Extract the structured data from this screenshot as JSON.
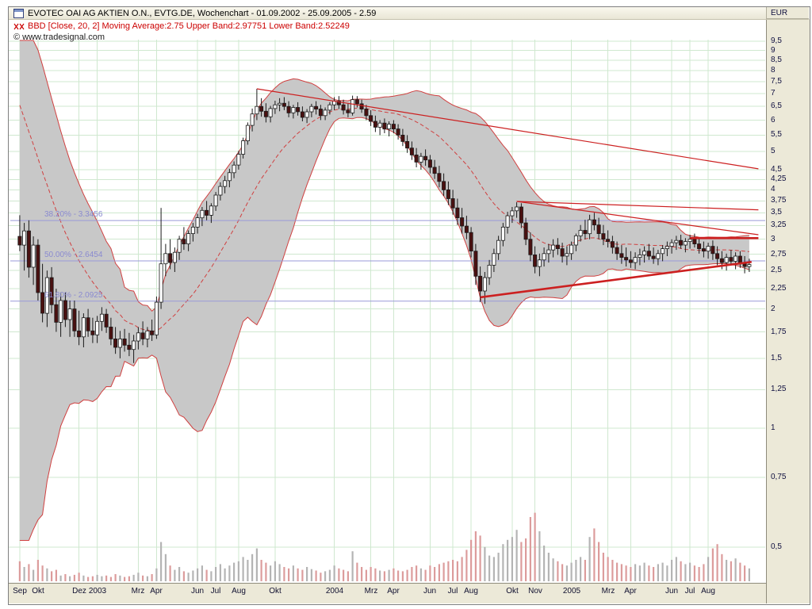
{
  "window": {
    "title": "EVOTEC OAI AG AKTIEN O.N., EVTG.DE, Wochenchart - 01.09.2002 - 25.09.2005 - 2.59",
    "indicator_line": "BBD [Close, 20, 2] Moving Average:2.75 Upper Band:2.97751 Lower Band:2.52249",
    "copyright": "© www.tradesignal.com",
    "currency_label": "EUR"
  },
  "colors": {
    "grid": "#cfe8cf",
    "band_fill": "#c8c8c8",
    "band_line": "#d04040",
    "ma_line": "#d04040",
    "fib_line": "#9a9ad8",
    "fib_label": "#8a8ad0",
    "candle_up": "#ffffff",
    "candle_down": "#4a1010",
    "candle_stroke": "#1a1a1a",
    "volume_up": "#b4b4b4",
    "volume_down": "#dc9c9c",
    "trendline": "#cc2020",
    "red_text": "#cc0000",
    "panel_bg": "#ece9d8"
  },
  "chart_data": {
    "type": "candlestick",
    "instrument": "EVOTEC OAI AG AKTIEN O.N.",
    "symbol": "EVTG.DE",
    "timeframe": "Wochenchart",
    "date_range": "01.09.2002 - 25.09.2005",
    "last_price": 2.59,
    "scale": "log",
    "ylim": [
      0.5,
      9.5
    ],
    "bollinger": {
      "period": 20,
      "mult": 2,
      "moving_average": 2.75,
      "upper_band": 2.97751,
      "lower_band": 2.52249
    },
    "y_ticks": [
      {
        "value": 9.5,
        "label": "9,5"
      },
      {
        "value": 9,
        "label": "9"
      },
      {
        "value": 8.5,
        "label": "8,5"
      },
      {
        "value": 8,
        "label": "8"
      },
      {
        "value": 7.5,
        "label": "7,5"
      },
      {
        "value": 7,
        "label": "7"
      },
      {
        "value": 6.5,
        "label": "6,5"
      },
      {
        "value": 6,
        "label": "6"
      },
      {
        "value": 5.5,
        "label": "5,5"
      },
      {
        "value": 5,
        "label": "5"
      },
      {
        "value": 4.5,
        "label": "4,5"
      },
      {
        "value": 4.25,
        "label": "4,25"
      },
      {
        "value": 4,
        "label": "4"
      },
      {
        "value": 3.75,
        "label": "3,75"
      },
      {
        "value": 3.5,
        "label": "3,5"
      },
      {
        "value": 3.25,
        "label": "3,25"
      },
      {
        "value": 3,
        "label": "3"
      },
      {
        "value": 2.75,
        "label": "2,75"
      },
      {
        "value": 2.5,
        "label": "2,5"
      },
      {
        "value": 2.25,
        "label": "2,25"
      },
      {
        "value": 2,
        "label": "2"
      },
      {
        "value": 1.75,
        "label": "1,75"
      },
      {
        "value": 1.5,
        "label": "1,5"
      },
      {
        "value": 1.25,
        "label": "1,25"
      },
      {
        "value": 1,
        "label": "1"
      },
      {
        "value": 0.75,
        "label": "0,75"
      },
      {
        "value": 0.5,
        "label": "0,5"
      }
    ],
    "x_labels": [
      {
        "label": "Sep",
        "week": 0
      },
      {
        "label": "Okt",
        "week": 4
      },
      {
        "label": "Dez",
        "week": 13
      },
      {
        "label": "2003",
        "week": 17
      },
      {
        "label": "Mrz",
        "week": 26
      },
      {
        "label": "Apr",
        "week": 30
      },
      {
        "label": "Jun",
        "week": 39
      },
      {
        "label": "Jul",
        "week": 43
      },
      {
        "label": "Aug",
        "week": 48
      },
      {
        "label": "Okt",
        "week": 56
      },
      {
        "label": "2004",
        "week": 69
      },
      {
        "label": "Mrz",
        "week": 77
      },
      {
        "label": "Apr",
        "week": 82
      },
      {
        "label": "Jun",
        "week": 90
      },
      {
        "label": "Jul",
        "week": 95
      },
      {
        "label": "Aug",
        "week": 99
      },
      {
        "label": "Okt",
        "week": 108
      },
      {
        "label": "Nov",
        "week": 113
      },
      {
        "label": "2005",
        "week": 121
      },
      {
        "label": "Mrz",
        "week": 129
      },
      {
        "label": "Apr",
        "week": 134
      },
      {
        "label": "Jun",
        "week": 143
      },
      {
        "label": "Jul",
        "week": 147
      },
      {
        "label": "Aug",
        "week": 151
      }
    ],
    "fib_levels": [
      {
        "label": "38.20% - 3.3456",
        "price": 3.3456
      },
      {
        "label": "50.00% - 2.6454",
        "price": 2.6454
      },
      {
        "label": "61.80% - 2.0925",
        "price": 2.0925
      }
    ],
    "trendlines": [
      {
        "w1": 52,
        "p1": 7.2,
        "w2": 162,
        "p2": 4.52,
        "width": 1.2
      },
      {
        "w1": 109,
        "p1": 3.74,
        "w2": 162,
        "p2": 3.56,
        "width": 1.2
      },
      {
        "w1": 109,
        "p1": 3.74,
        "w2": 162,
        "p2": 3.08,
        "width": 1.2
      },
      {
        "w1": 101,
        "p1": 2.14,
        "w2": 160.5,
        "p2": 2.63,
        "width": 2.6
      },
      {
        "w1": 147,
        "p1": 3.02,
        "w2": 162,
        "p2": 3.02,
        "width": 2.6
      }
    ],
    "prehistory_closes": [
      13.5,
      12.6,
      11.8,
      11.0,
      10.2,
      9.4,
      8.7,
      8.0,
      7.3,
      6.6,
      6.0,
      5.4,
      4.9,
      4.5,
      4.15,
      3.85,
      3.6,
      3.45,
      3.35,
      3.2
    ],
    "candles": [
      [
        3.05,
        3.45,
        2.8,
        2.9
      ],
      [
        2.9,
        3.3,
        2.5,
        3.15
      ],
      [
        3.15,
        3.35,
        2.4,
        2.55
      ],
      [
        2.55,
        3.05,
        2.3,
        2.9
      ],
      [
        2.9,
        3.0,
        2.1,
        2.2
      ],
      [
        2.2,
        2.6,
        1.85,
        1.95
      ],
      [
        1.95,
        2.5,
        1.8,
        2.4
      ],
      [
        2.4,
        2.55,
        1.95,
        2.05
      ],
      [
        2.05,
        2.25,
        1.75,
        1.85
      ],
      [
        1.85,
        2.2,
        1.7,
        2.1
      ],
      [
        2.1,
        2.2,
        1.8,
        1.88
      ],
      [
        1.88,
        2.1,
        1.7,
        2.0
      ],
      [
        2.0,
        2.1,
        1.7,
        1.76
      ],
      [
        1.76,
        1.98,
        1.62,
        1.7
      ],
      [
        1.7,
        1.95,
        1.6,
        1.9
      ],
      [
        1.9,
        2.0,
        1.7,
        1.76
      ],
      [
        1.76,
        1.9,
        1.64,
        1.72
      ],
      [
        1.72,
        1.92,
        1.64,
        1.86
      ],
      [
        1.86,
        2.02,
        1.76,
        1.94
      ],
      [
        1.94,
        2.0,
        1.74,
        1.8
      ],
      [
        1.8,
        1.9,
        1.62,
        1.68
      ],
      [
        1.68,
        1.8,
        1.54,
        1.6
      ],
      [
        1.6,
        1.76,
        1.5,
        1.68
      ],
      [
        1.68,
        1.78,
        1.56,
        1.62
      ],
      [
        1.62,
        1.74,
        1.52,
        1.58
      ],
      [
        1.58,
        1.72,
        1.46,
        1.66
      ],
      [
        1.66,
        1.8,
        1.58,
        1.74
      ],
      [
        1.74,
        1.86,
        1.62,
        1.68
      ],
      [
        1.68,
        1.8,
        1.6,
        1.76
      ],
      [
        1.76,
        1.88,
        1.66,
        1.72
      ],
      [
        1.72,
        2.15,
        1.68,
        2.08
      ],
      [
        2.08,
        3.6,
        2.0,
        2.6
      ],
      [
        2.6,
        2.92,
        2.42,
        2.76
      ],
      [
        2.76,
        3.0,
        2.52,
        2.62
      ],
      [
        2.62,
        2.86,
        2.48,
        2.78
      ],
      [
        2.78,
        3.06,
        2.66,
        3.0
      ],
      [
        3.0,
        3.22,
        2.82,
        2.92
      ],
      [
        2.92,
        3.16,
        2.8,
        3.1
      ],
      [
        3.1,
        3.3,
        2.96,
        3.22
      ],
      [
        3.22,
        3.48,
        3.1,
        3.4
      ],
      [
        3.4,
        3.62,
        3.24,
        3.55
      ],
      [
        3.55,
        3.75,
        3.35,
        3.45
      ],
      [
        3.45,
        3.7,
        3.3,
        3.64
      ],
      [
        3.64,
        3.95,
        3.54,
        3.88
      ],
      [
        3.88,
        4.18,
        3.76,
        4.08
      ],
      [
        4.08,
        4.34,
        3.92,
        4.22
      ],
      [
        4.22,
        4.52,
        4.06,
        4.42
      ],
      [
        4.42,
        4.72,
        4.28,
        4.62
      ],
      [
        4.62,
        5.02,
        4.5,
        4.92
      ],
      [
        4.92,
        5.42,
        4.8,
        5.32
      ],
      [
        5.32,
        5.92,
        5.2,
        5.82
      ],
      [
        5.82,
        6.42,
        5.62,
        6.22
      ],
      [
        6.22,
        7.2,
        6.0,
        6.5
      ],
      [
        6.5,
        6.82,
        6.12,
        6.32
      ],
      [
        6.32,
        6.62,
        5.92,
        6.12
      ],
      [
        6.12,
        6.52,
        5.92,
        6.42
      ],
      [
        6.42,
        6.72,
        6.22,
        6.56
      ],
      [
        6.56,
        6.82,
        6.32,
        6.62
      ],
      [
        6.62,
        6.86,
        6.36,
        6.5
      ],
      [
        6.5,
        6.7,
        6.1,
        6.26
      ],
      [
        6.26,
        6.56,
        6.06,
        6.46
      ],
      [
        6.46,
        6.66,
        6.16,
        6.3
      ],
      [
        6.3,
        6.5,
        5.96,
        6.1
      ],
      [
        6.1,
        6.4,
        5.9,
        6.3
      ],
      [
        6.3,
        6.6,
        6.1,
        6.5
      ],
      [
        6.5,
        6.7,
        6.2,
        6.4
      ],
      [
        6.4,
        6.56,
        6.0,
        6.16
      ],
      [
        6.16,
        6.46,
        6.0,
        6.36
      ],
      [
        6.36,
        6.66,
        6.2,
        6.56
      ],
      [
        6.56,
        6.86,
        6.36,
        6.7
      ],
      [
        6.7,
        6.9,
        6.4,
        6.56
      ],
      [
        6.56,
        6.76,
        6.2,
        6.36
      ],
      [
        6.36,
        6.6,
        6.1,
        6.26
      ],
      [
        6.26,
        6.92,
        6.16,
        6.76
      ],
      [
        6.76,
        6.9,
        6.46,
        6.6
      ],
      [
        6.6,
        6.76,
        6.26,
        6.4
      ],
      [
        6.4,
        6.56,
        6.0,
        6.16
      ],
      [
        6.16,
        6.36,
        5.8,
        5.96
      ],
      [
        5.96,
        6.16,
        5.6,
        5.76
      ],
      [
        5.76,
        6.0,
        5.5,
        5.9
      ],
      [
        5.9,
        6.06,
        5.56,
        5.7
      ],
      [
        5.7,
        5.96,
        5.46,
        5.86
      ],
      [
        5.86,
        6.0,
        5.56,
        5.7
      ],
      [
        5.7,
        5.86,
        5.36,
        5.5
      ],
      [
        5.5,
        5.7,
        5.16,
        5.3
      ],
      [
        5.3,
        5.5,
        4.96,
        5.1
      ],
      [
        5.1,
        5.3,
        4.76,
        4.9
      ],
      [
        4.9,
        5.1,
        4.56,
        4.7
      ],
      [
        4.7,
        4.96,
        4.5,
        4.86
      ],
      [
        4.86,
        5.06,
        4.6,
        4.76
      ],
      [
        4.76,
        4.9,
        4.4,
        4.56
      ],
      [
        4.56,
        4.76,
        4.26,
        4.4
      ],
      [
        4.4,
        4.6,
        4.06,
        4.2
      ],
      [
        4.2,
        4.4,
        3.86,
        4.0
      ],
      [
        4.0,
        4.2,
        3.66,
        3.8
      ],
      [
        3.8,
        4.0,
        3.46,
        3.6
      ],
      [
        3.6,
        3.8,
        3.26,
        3.4
      ],
      [
        3.4,
        3.6,
        3.1,
        3.24
      ],
      [
        3.24,
        3.44,
        3.0,
        3.12
      ],
      [
        3.12,
        3.22,
        2.7,
        2.8
      ],
      [
        2.8,
        2.92,
        2.3,
        2.42
      ],
      [
        2.42,
        2.56,
        2.08,
        2.22
      ],
      [
        2.22,
        2.48,
        2.06,
        2.4
      ],
      [
        2.4,
        2.66,
        2.3,
        2.58
      ],
      [
        2.58,
        2.84,
        2.48,
        2.76
      ],
      [
        2.76,
        3.06,
        2.66,
        2.98
      ],
      [
        2.98,
        3.3,
        2.88,
        3.22
      ],
      [
        3.22,
        3.52,
        3.1,
        3.44
      ],
      [
        3.44,
        3.62,
        3.3,
        3.54
      ],
      [
        3.54,
        3.72,
        3.4,
        3.62
      ],
      [
        3.62,
        3.7,
        3.2,
        3.3
      ],
      [
        3.3,
        3.4,
        2.9,
        3.0
      ],
      [
        3.0,
        3.12,
        2.64,
        2.74
      ],
      [
        2.74,
        2.88,
        2.46,
        2.56
      ],
      [
        2.56,
        2.76,
        2.42,
        2.66
      ],
      [
        2.66,
        2.86,
        2.56,
        2.76
      ],
      [
        2.76,
        2.92,
        2.62,
        2.82
      ],
      [
        2.82,
        3.0,
        2.7,
        2.9
      ],
      [
        2.9,
        3.02,
        2.74,
        2.84
      ],
      [
        2.84,
        2.94,
        2.62,
        2.72
      ],
      [
        2.72,
        2.88,
        2.58,
        2.76
      ],
      [
        2.76,
        2.96,
        2.66,
        2.9
      ],
      [
        2.9,
        3.1,
        2.8,
        3.06
      ],
      [
        3.06,
        3.26,
        2.96,
        3.16
      ],
      [
        3.16,
        3.36,
        3.0,
        3.1
      ],
      [
        3.1,
        3.46,
        3.0,
        3.36
      ],
      [
        3.36,
        3.5,
        3.16,
        3.26
      ],
      [
        3.26,
        3.4,
        3.0,
        3.1
      ],
      [
        3.1,
        3.26,
        2.9,
        3.0
      ],
      [
        3.0,
        3.16,
        2.86,
        2.96
      ],
      [
        2.96,
        3.06,
        2.76,
        2.86
      ],
      [
        2.86,
        2.96,
        2.66,
        2.76
      ],
      [
        2.76,
        2.9,
        2.6,
        2.7
      ],
      [
        2.7,
        2.86,
        2.56,
        2.66
      ],
      [
        2.66,
        2.8,
        2.54,
        2.62
      ],
      [
        2.62,
        2.78,
        2.52,
        2.7
      ],
      [
        2.7,
        2.84,
        2.58,
        2.74
      ],
      [
        2.74,
        2.88,
        2.62,
        2.8
      ],
      [
        2.8,
        2.92,
        2.66,
        2.72
      ],
      [
        2.72,
        2.86,
        2.6,
        2.68
      ],
      [
        2.68,
        2.82,
        2.58,
        2.76
      ],
      [
        2.76,
        2.9,
        2.64,
        2.84
      ],
      [
        2.84,
        2.96,
        2.72,
        2.88
      ],
      [
        2.88,
        3.0,
        2.76,
        2.94
      ],
      [
        2.94,
        3.06,
        2.82,
        2.98
      ],
      [
        2.98,
        3.08,
        2.84,
        2.9
      ],
      [
        2.9,
        3.02,
        2.78,
        2.96
      ],
      [
        2.96,
        3.08,
        2.84,
        3.0
      ],
      [
        3.0,
        3.1,
        2.86,
        2.92
      ],
      [
        2.92,
        3.02,
        2.76,
        2.84
      ],
      [
        2.84,
        2.96,
        2.7,
        2.8
      ],
      [
        2.8,
        2.94,
        2.68,
        2.88
      ],
      [
        2.88,
        2.98,
        2.66,
        2.76
      ],
      [
        2.76,
        2.88,
        2.58,
        2.68
      ],
      [
        2.68,
        2.8,
        2.52,
        2.62
      ],
      [
        2.62,
        2.76,
        2.5,
        2.7
      ],
      [
        2.7,
        2.82,
        2.58,
        2.64
      ],
      [
        2.64,
        2.78,
        2.52,
        2.72
      ],
      [
        2.72,
        2.8,
        2.54,
        2.6
      ],
      [
        2.6,
        2.72,
        2.46,
        2.56
      ],
      [
        2.56,
        2.68,
        2.48,
        2.59
      ]
    ],
    "volume": [
      28,
      20,
      24,
      16,
      30,
      22,
      18,
      14,
      16,
      8,
      10,
      7,
      9,
      12,
      8,
      6,
      7,
      9,
      7,
      8,
      6,
      10,
      8,
      6,
      7,
      9,
      12,
      8,
      7,
      10,
      18,
      55,
      38,
      22,
      16,
      20,
      14,
      12,
      15,
      18,
      22,
      16,
      14,
      20,
      24,
      18,
      22,
      26,
      28,
      34,
      30,
      38,
      46,
      30,
      26,
      22,
      28,
      24,
      20,
      18,
      22,
      18,
      16,
      20,
      17,
      15,
      12,
      14,
      16,
      22,
      18,
      16,
      14,
      42,
      26,
      20,
      16,
      20,
      18,
      15,
      14,
      16,
      18,
      15,
      14,
      16,
      20,
      22,
      18,
      16,
      22,
      20,
      24,
      26,
      28,
      30,
      28,
      34,
      44,
      58,
      70,
      64,
      48,
      36,
      34,
      40,
      52,
      58,
      62,
      72,
      55,
      60,
      90,
      96,
      70,
      50,
      40,
      32,
      28,
      24,
      22,
      26,
      30,
      34,
      30,
      62,
      74,
      55,
      40,
      34,
      30,
      26,
      24,
      22,
      20,
      24,
      22,
      26,
      22,
      20,
      24,
      26,
      22,
      30,
      34,
      28,
      24,
      26,
      22,
      20,
      24,
      34,
      46,
      52,
      38,
      30,
      28,
      32,
      26,
      22,
      18
    ]
  }
}
